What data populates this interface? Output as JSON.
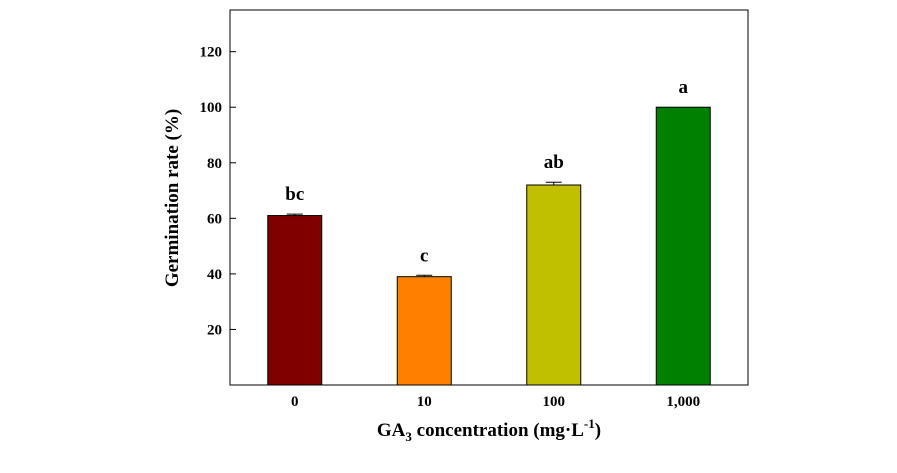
{
  "chart_data": {
    "type": "bar",
    "title": "",
    "xlabel": "GA",
    "xlabel_sub": "3",
    "xlabel_rest": " concentration (mg·L",
    "xlabel_sup": "-1",
    "xlabel_end": ")",
    "ylabel": "Germination rate (%)",
    "ylim": [
      0,
      135
    ],
    "yticks": [
      20,
      40,
      60,
      80,
      100,
      120
    ],
    "categories": [
      "0",
      "10",
      "100",
      "1,000"
    ],
    "values": [
      61,
      39,
      72,
      100
    ],
    "errors": [
      0.5,
      0.5,
      1,
      0
    ],
    "significance": [
      "bc",
      "c",
      "ab",
      "a"
    ],
    "colors": [
      "#800000",
      "#ff8000",
      "#c0c000",
      "#008000"
    ],
    "grid": false,
    "legend": "none"
  }
}
